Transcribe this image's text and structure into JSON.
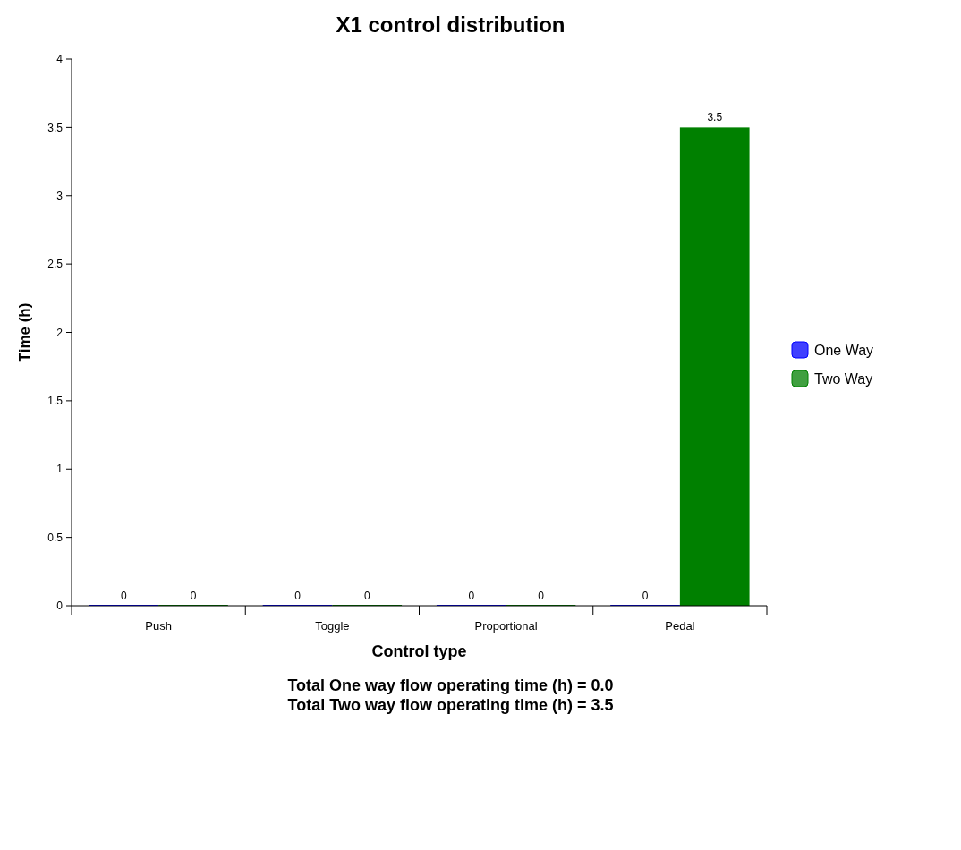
{
  "chart_data": {
    "type": "bar",
    "title": "X1 control distribution",
    "xlabel": "Control type",
    "ylabel": "Time (h)",
    "categories": [
      "Push",
      "Toggle",
      "Proportional",
      "Pedal"
    ],
    "series": [
      {
        "name": "One Way",
        "color": "#0000ff",
        "values": [
          0,
          0,
          0,
          0
        ]
      },
      {
        "name": "Two Way",
        "color": "#008000",
        "values": [
          0,
          0,
          0,
          3.5
        ]
      }
    ],
    "ylim": [
      0,
      4
    ],
    "yticks": [
      0,
      0.5,
      1,
      1.5,
      2,
      2.5,
      3,
      3.5,
      4
    ],
    "grid": false,
    "legend": "right",
    "data_labels": true,
    "annotations": [
      "Total One way flow operating time (h) = 0.0",
      "Total Two way flow operating time (h) = 3.5"
    ]
  }
}
